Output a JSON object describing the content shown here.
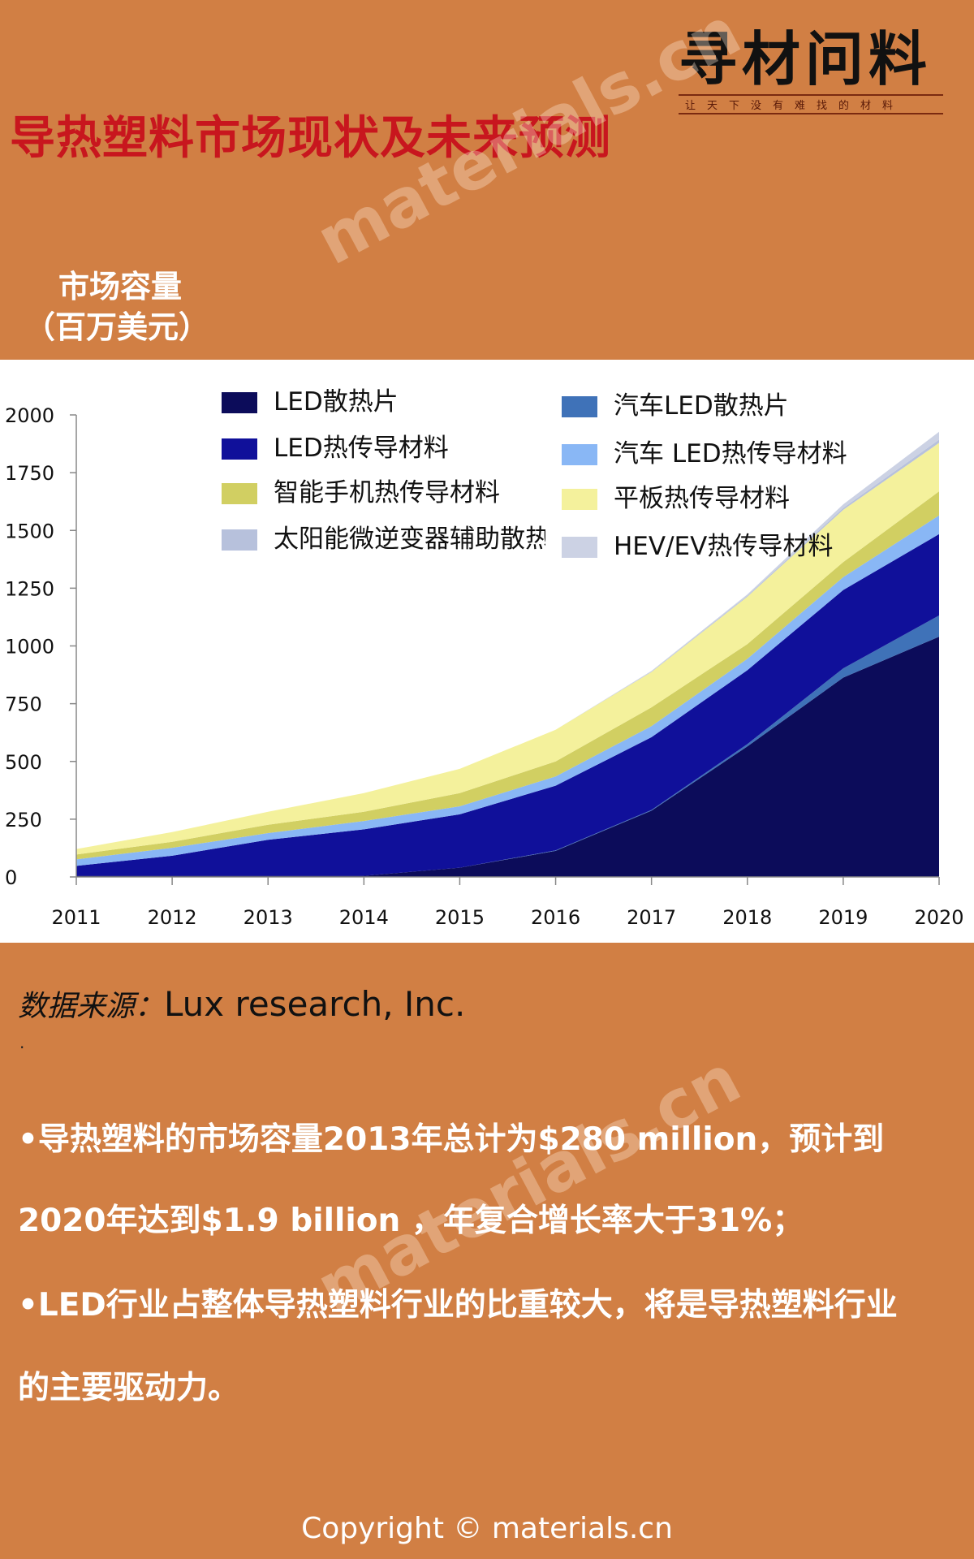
{
  "title": "导热塑料市场现状及未来预测",
  "logo": {
    "main": "寻材问料",
    "tagline": "让天下没有难找的材料"
  },
  "watermark": "materials.cn",
  "y_axis_title": {
    "line1": "市场容量",
    "line2": "（百万美元）"
  },
  "chart_data": {
    "type": "area",
    "stacked": true,
    "x": [
      "2011",
      "2012",
      "2013",
      "2014",
      "2015",
      "2016",
      "2017",
      "2018",
      "2019",
      "2020"
    ],
    "ylim": [
      0,
      2000
    ],
    "yticks": [
      0,
      250,
      500,
      750,
      1000,
      1250,
      1500,
      1750,
      2000
    ],
    "grid": false,
    "legend_position": "top",
    "series": [
      {
        "name": "LED散热片",
        "color": "#0c0c5a",
        "values": [
          5,
          5,
          5,
          5,
          40,
          113,
          287,
          565,
          863,
          1040
        ]
      },
      {
        "name": "汽车LED散热片",
        "color": "#3f72b8",
        "values": [
          0,
          0,
          0,
          0,
          0,
          2,
          3,
          10,
          40,
          92
        ]
      },
      {
        "name": "LED热传导材料",
        "color": "#10109a",
        "values": [
          43,
          87,
          156,
          201,
          231,
          280,
          315,
          320,
          339,
          352
        ]
      },
      {
        "name": "汽车 LED热传导材料",
        "color": "#89b7f5",
        "values": [
          28,
          34,
          29,
          36,
          35,
          40,
          48,
          49,
          56,
          81
        ]
      },
      {
        "name": "智能手机热传导材料",
        "color": "#d1cf62",
        "values": [
          21,
          26,
          36,
          40,
          57,
          65,
          81,
          64,
          65,
          104
        ]
      },
      {
        "name": "平板热传导材料",
        "color": "#f4f19c",
        "values": [
          24,
          42,
          56,
          81,
          105,
          137,
          153,
          205,
          226,
          210
        ]
      },
      {
        "name": "太阳能微逆变器辅助散热",
        "color": "#b7c1dc",
        "values": [
          0,
          0,
          0,
          0,
          0,
          0,
          2,
          4,
          8,
          14
        ]
      },
      {
        "name": "HEV/EV热传导材料",
        "color": "#ccd2e4",
        "values": [
          0,
          0,
          0,
          0,
          0,
          0,
          3,
          6,
          16,
          34
        ]
      }
    ],
    "legend_labels": [
      "LED散热片",
      "LED热传导材料",
      "智能手机热传导材料",
      "太阳能微逆变器辅助散热",
      "汽车LED散热片",
      "汽车 LED热传导材料",
      "平板热传导材料",
      "HEV/EV热传导材料"
    ]
  },
  "source": {
    "label": "数据来源：",
    "value": "Lux research, Inc.",
    "dot": "."
  },
  "bullets": [
    "•导热塑料的市场容量2013年总计为$280 million，预计到",
    "2020年达到$1.9 billion ，年复合增长率大于31%；",
    "•LED行业占整体导热塑料行业的比重较大，将是导热塑料行业",
    "的主要驱动力。"
  ],
  "copyright": "Copyright © materials.cn"
}
